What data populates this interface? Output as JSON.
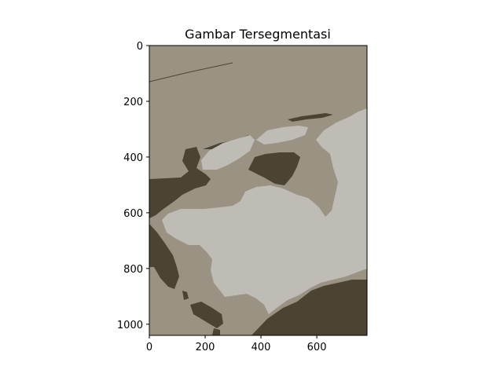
{
  "chart_data": {
    "type": "heatmap",
    "title": "Gambar Tersegmentasi",
    "xlabel": "",
    "ylabel": "",
    "xlim": [
      0,
      780
    ],
    "ylim": [
      1040,
      0
    ],
    "xticks": [
      0,
      200,
      400,
      600
    ],
    "yticks": [
      0,
      200,
      400,
      600,
      800,
      1000
    ],
    "grid": false,
    "segments": [
      {
        "name": "background",
        "color": "#9a9384"
      },
      {
        "name": "dark",
        "color": "#4b4334"
      },
      {
        "name": "light",
        "color": "#bfbcb6"
      }
    ]
  }
}
